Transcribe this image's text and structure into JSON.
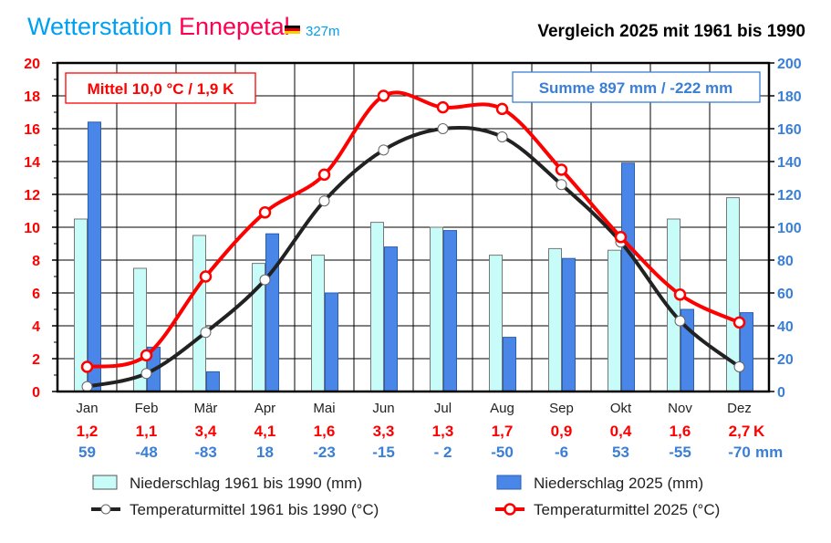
{
  "header": {
    "station_word": "Wetterstation",
    "station_name": "Ennepetal",
    "altitude": "327m",
    "comparison": "Vergleich 2025 mit 1961 bis 1990"
  },
  "colors": {
    "temp_axis": "#ff0000",
    "precip_axis": "#3a7fd5",
    "bar_ref": "#c8fcf8",
    "bar_2025": "#4a86e8",
    "line_ref": "#222222",
    "line_2025": "#ff0000",
    "title_blue": "#00a0f0",
    "title_pink": "#ff0050"
  },
  "chart_data": {
    "type": "bar+line",
    "categories": [
      "Jan",
      "Feb",
      "Mär",
      "Apr",
      "Mai",
      "Jun",
      "Jul",
      "Aug",
      "Sep",
      "Okt",
      "Nov",
      "Dez"
    ],
    "y_left": {
      "range": [
        0,
        20
      ],
      "ticks": [
        0,
        2,
        4,
        6,
        8,
        10,
        12,
        14,
        16,
        18,
        20
      ],
      "unit": "°C"
    },
    "y_right": {
      "range": [
        0,
        200
      ],
      "ticks": [
        0,
        20,
        40,
        60,
        80,
        100,
        120,
        140,
        160,
        180,
        200
      ],
      "unit": "mm"
    },
    "grid": true,
    "series": [
      {
        "name": "Niederschlag 1961 bis 1990 (mm)",
        "kind": "bar",
        "axis": "right",
        "values": [
          105,
          75,
          95,
          78,
          83,
          103,
          100,
          83,
          87,
          86,
          105,
          118
        ]
      },
      {
        "name": "Niederschlag 2025 (mm)",
        "kind": "bar",
        "axis": "right",
        "values": [
          164,
          27,
          12,
          96,
          60,
          88,
          98,
          33,
          81,
          139,
          50,
          48
        ]
      },
      {
        "name": "Temperaturmittel 1961 bis 1990 (°C)",
        "kind": "line",
        "axis": "left",
        "values": [
          0.3,
          1.1,
          3.6,
          6.8,
          11.6,
          14.7,
          16.0,
          15.5,
          12.6,
          9.1,
          4.3,
          1.5
        ]
      },
      {
        "name": "Temperaturmittel 2025 (°C)",
        "kind": "line",
        "axis": "left",
        "values": [
          1.5,
          2.2,
          7.0,
          10.9,
          13.2,
          18.0,
          17.3,
          17.2,
          13.5,
          9.4,
          5.9,
          4.2
        ]
      }
    ],
    "annotations": {
      "temp_summary": "Mittel 10,0 °C / 1,9 K",
      "precip_summary": "Summe 897 mm / -222 mm"
    },
    "temp_deviation": [
      "1,2",
      "1,1",
      "3,4",
      "4,1",
      "1,6",
      "3,3",
      "1,3",
      "1,7",
      "0,9",
      "0,4",
      "1,6",
      "2,7"
    ],
    "temp_deviation_unit": "K",
    "precip_deviation": [
      "59",
      "-48",
      "-83",
      "18",
      "-23",
      "-15",
      "- 2",
      "-50",
      "-6",
      "53",
      "-55",
      "-70"
    ],
    "precip_deviation_unit": "mm",
    "legend_placement": "bottom"
  }
}
